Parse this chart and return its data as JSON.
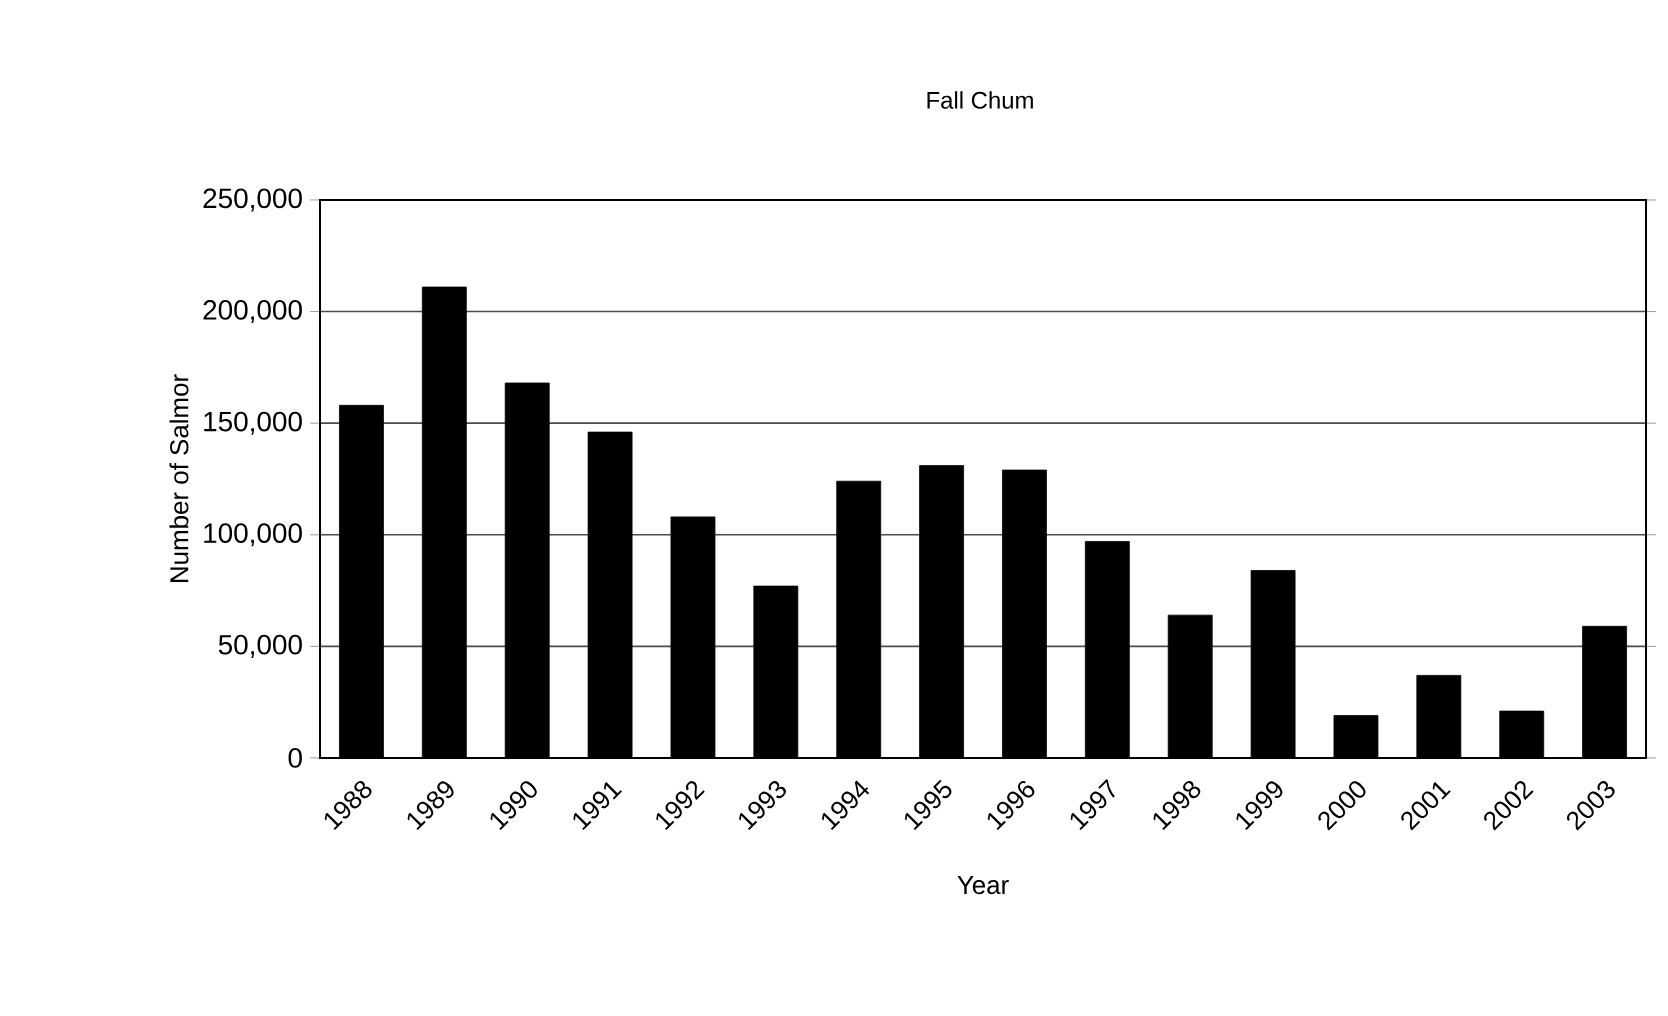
{
  "chart_data": {
    "type": "bar",
    "title": "Fall Chum",
    "xlabel": "Year",
    "ylabel": "Number of Salmor",
    "categories": [
      "1988",
      "1989",
      "1990",
      "1991",
      "1992",
      "1993",
      "1994",
      "1995",
      "1996",
      "1997",
      "1998",
      "1999",
      "2000",
      "2001",
      "2002",
      "2003"
    ],
    "values": [
      158000,
      211000,
      168000,
      146000,
      108000,
      77000,
      124000,
      131000,
      129000,
      97000,
      64000,
      84000,
      19000,
      37000,
      21000,
      59000
    ],
    "color": "#000000",
    "ylim": [
      0,
      250000
    ],
    "yticks": [
      {
        "value": 0,
        "label": "0"
      },
      {
        "value": 50000,
        "label": "50,000"
      },
      {
        "value": 100000,
        "label": "100,000"
      },
      {
        "value": 150000,
        "label": "150,000"
      },
      {
        "value": 200000,
        "label": "200,000"
      },
      {
        "value": 250000,
        "label": "250,000"
      }
    ],
    "grid": "y"
  }
}
